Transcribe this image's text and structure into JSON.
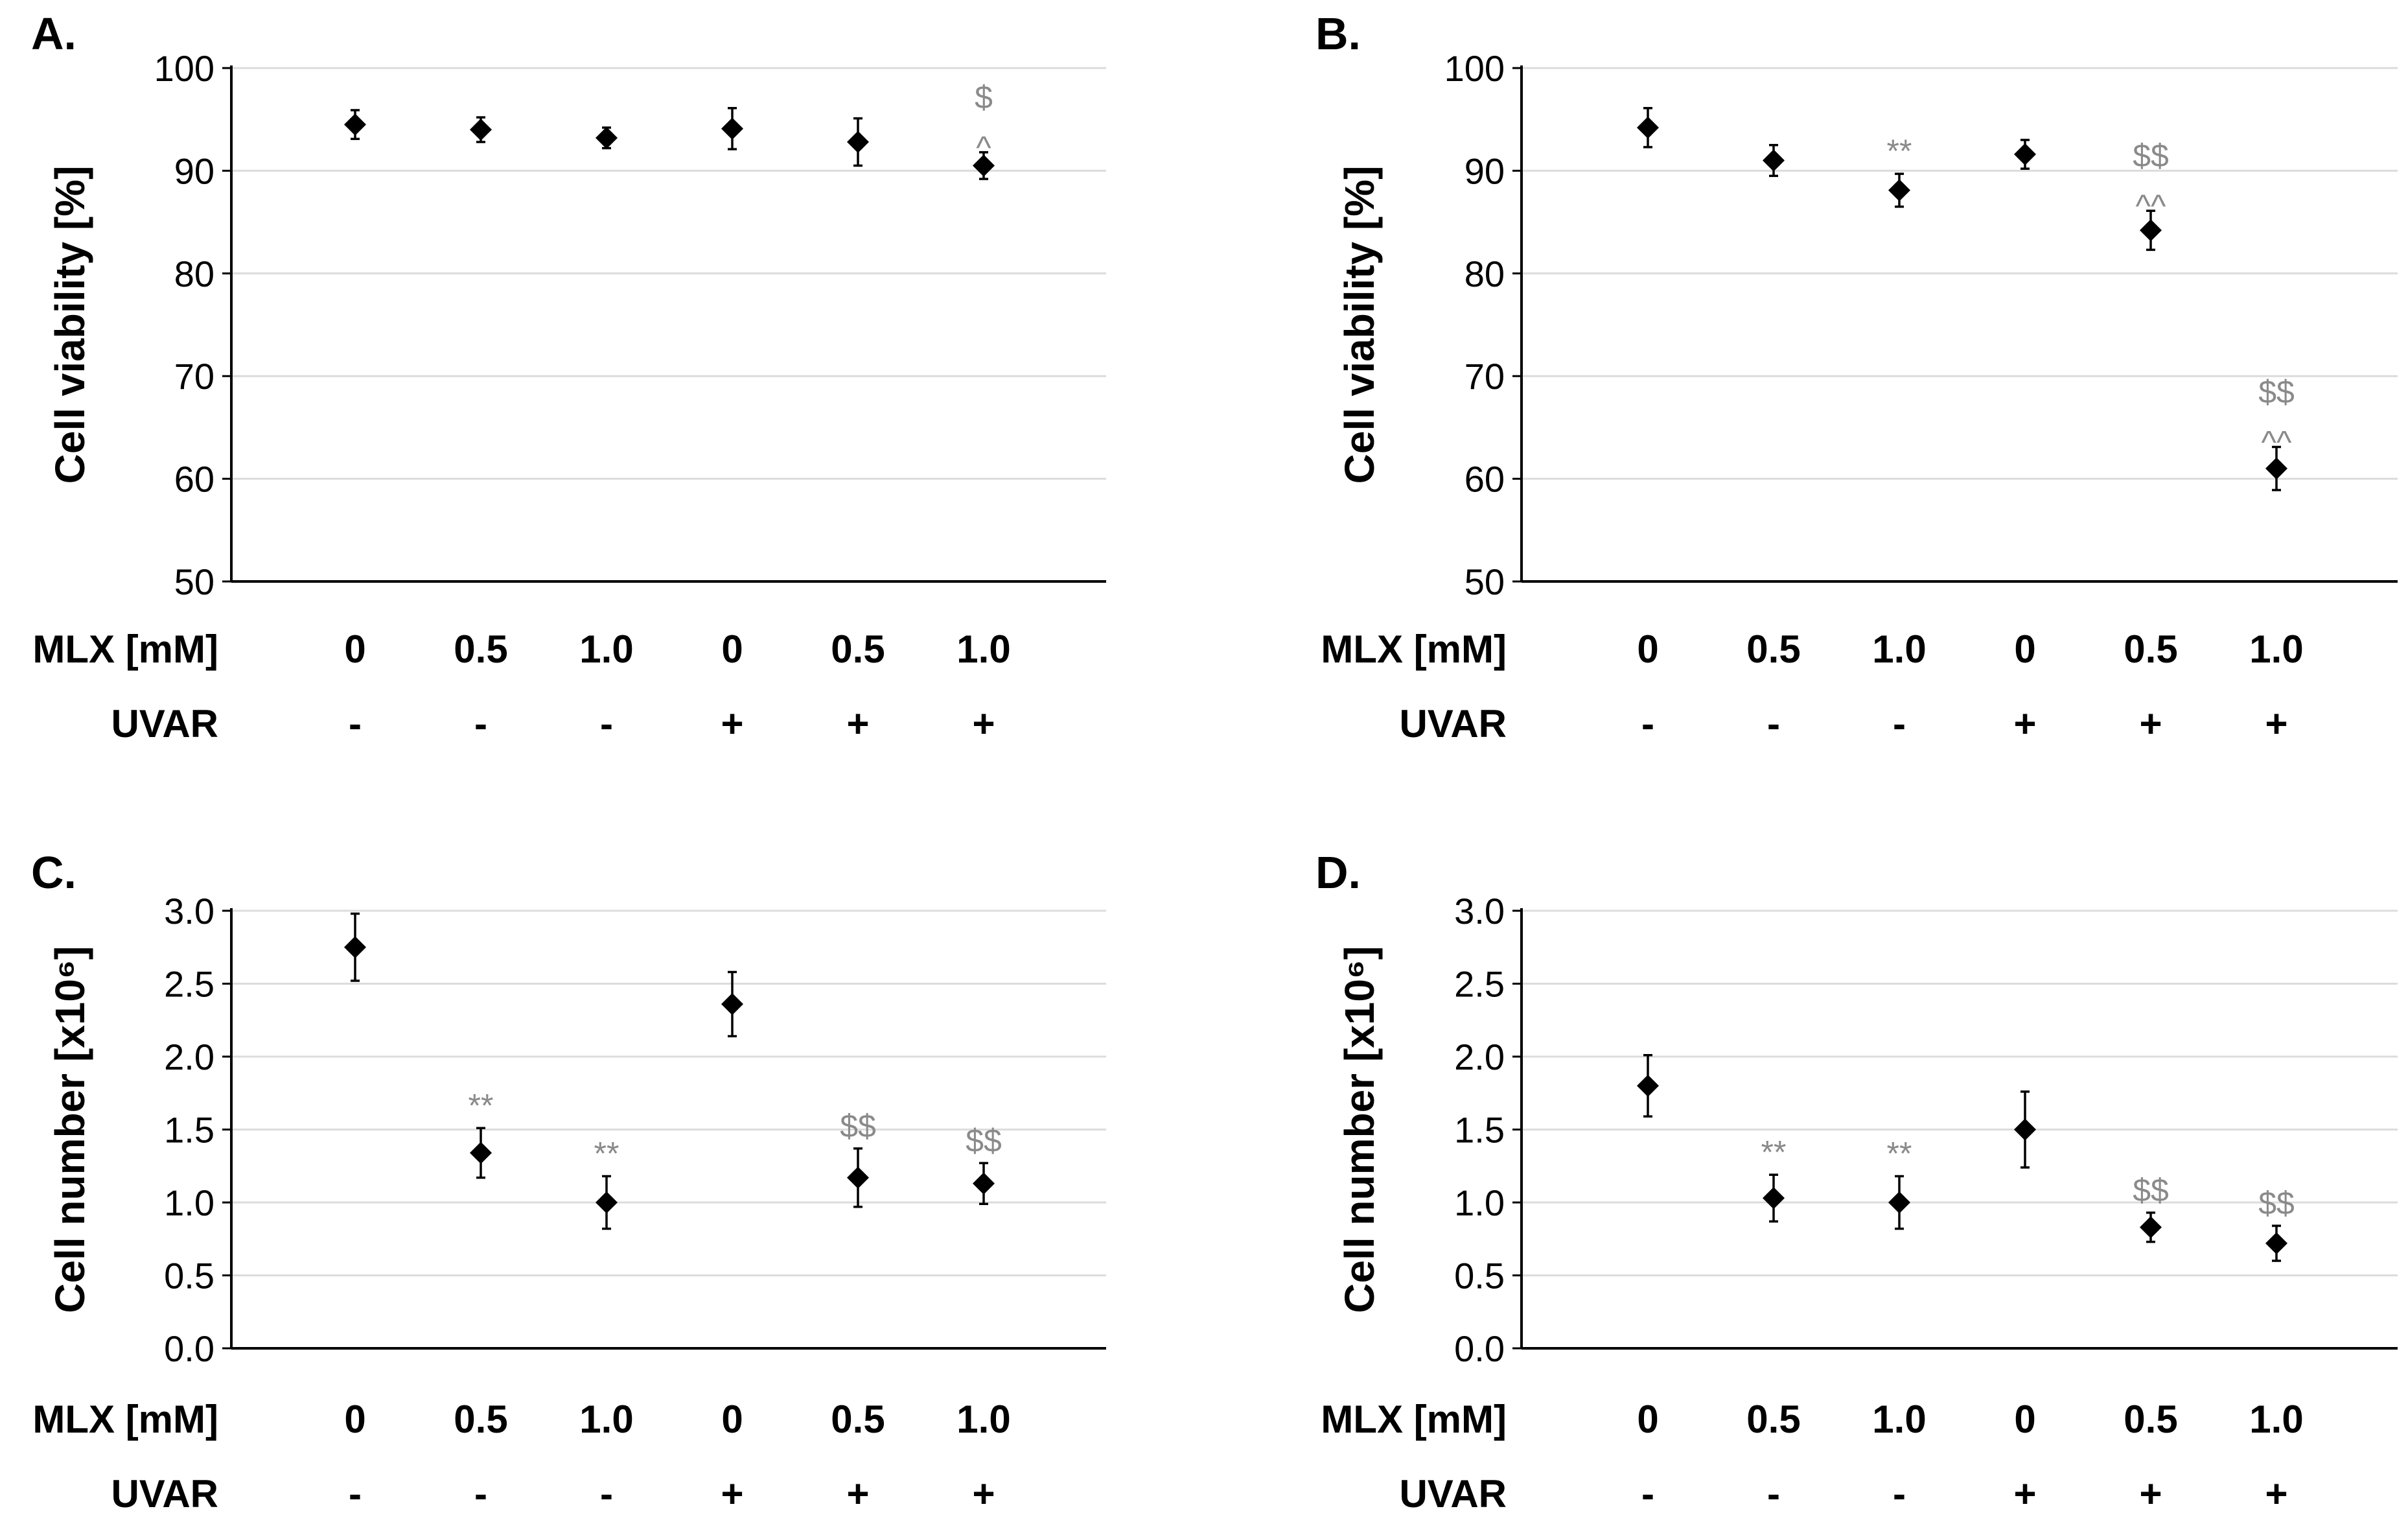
{
  "chart_data": [
    {
      "panel": "A.",
      "type": "scatter",
      "ylabel": "Cell viability [%]",
      "ylim": [
        50,
        100
      ],
      "yticks": [
        "50",
        "60",
        "70",
        "80",
        "90",
        "100"
      ],
      "grid": true,
      "rows": [
        {
          "label": "MLX [mM]",
          "values": [
            "0",
            "0.5",
            "1.0",
            "0",
            "0.5",
            "1.0"
          ]
        },
        {
          "label": "UVAR",
          "values": [
            "-",
            "-",
            "-",
            "+",
            "+",
            "+"
          ]
        }
      ],
      "series": [
        {
          "values": [
            94.5,
            94.0,
            93.2,
            94.1,
            92.8,
            90.5
          ],
          "errors": [
            1.4,
            1.2,
            1.0,
            2.0,
            2.3,
            1.3
          ]
        }
      ],
      "annotations": [
        [],
        [],
        [],
        [],
        [],
        [
          "$",
          "^"
        ]
      ]
    },
    {
      "panel": "B.",
      "type": "scatter",
      "ylabel": "Cell viability [%]",
      "ylim": [
        50,
        100
      ],
      "yticks": [
        "50",
        "60",
        "70",
        "80",
        "90",
        "100"
      ],
      "grid": true,
      "rows": [
        {
          "label": "MLX [mM]",
          "values": [
            "0",
            "0.5",
            "1.0",
            "0",
            "0.5",
            "1.0"
          ]
        },
        {
          "label": "UVAR",
          "values": [
            "-",
            "-",
            "-",
            "+",
            "+",
            "+"
          ]
        }
      ],
      "series": [
        {
          "values": [
            94.2,
            91.0,
            88.1,
            91.6,
            84.2,
            61.0
          ],
          "errors": [
            1.9,
            1.5,
            1.6,
            1.4,
            1.9,
            2.1
          ]
        }
      ],
      "annotations": [
        [],
        [],
        [
          "**"
        ],
        [],
        [
          "$$",
          "^^"
        ],
        [
          "$$",
          "^^"
        ]
      ]
    },
    {
      "panel": "C.",
      "type": "scatter",
      "ylabel": "Cell number [x10⁶]",
      "ylim": [
        0,
        3
      ],
      "yticks": [
        "0.0",
        "0.5",
        "1.0",
        "1.5",
        "2.0",
        "2.5",
        "3.0"
      ],
      "grid": true,
      "rows": [
        {
          "label": "MLX [mM]",
          "values": [
            "0",
            "0.5",
            "1.0",
            "0",
            "0.5",
            "1.0"
          ]
        },
        {
          "label": "UVAR",
          "values": [
            "-",
            "-",
            "-",
            "+",
            "+",
            "+"
          ]
        }
      ],
      "series": [
        {
          "values": [
            2.75,
            1.34,
            1.0,
            2.36,
            1.17,
            1.13
          ],
          "errors": [
            0.23,
            0.17,
            0.18,
            0.22,
            0.2,
            0.14
          ]
        }
      ],
      "annotations": [
        [],
        [
          "**"
        ],
        [
          "**"
        ],
        [],
        [
          "$$"
        ],
        [
          "$$"
        ]
      ]
    },
    {
      "panel": "D.",
      "type": "scatter",
      "ylabel": "Cell number [x10⁶]",
      "ylim": [
        0,
        3
      ],
      "yticks": [
        "0.0",
        "0.5",
        "1.0",
        "1.5",
        "2.0",
        "2.5",
        "3.0"
      ],
      "grid": true,
      "rows": [
        {
          "label": "MLX [mM]",
          "values": [
            "0",
            "0.5",
            "1.0",
            "0",
            "0.5",
            "1.0"
          ]
        },
        {
          "label": "UVAR",
          "values": [
            "-",
            "-",
            "-",
            "+",
            "+",
            "+"
          ]
        }
      ],
      "series": [
        {
          "values": [
            1.8,
            1.03,
            1.0,
            1.5,
            0.83,
            0.72
          ],
          "errors": [
            0.21,
            0.16,
            0.18,
            0.26,
            0.1,
            0.12
          ]
        }
      ],
      "annotations": [
        [],
        [
          "**"
        ],
        [
          "**"
        ],
        [],
        [
          "$$"
        ],
        [
          "$$"
        ]
      ]
    }
  ]
}
